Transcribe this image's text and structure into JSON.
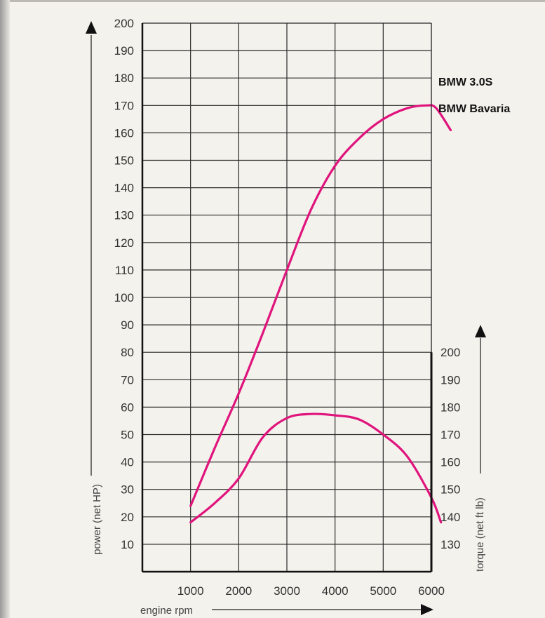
{
  "chart_data": {
    "type": "line",
    "xlabel": "engine rpm",
    "x_ticks": [
      1000,
      2000,
      3000,
      4000,
      5000,
      6000
    ],
    "xlim": [
      0,
      6000
    ],
    "left_axis": {
      "label": "power (net HP)",
      "ticks": [
        10,
        20,
        30,
        40,
        50,
        60,
        70,
        80,
        90,
        100,
        110,
        120,
        130,
        140,
        150,
        160,
        170,
        180,
        190,
        200
      ],
      "ylim": [
        0,
        200
      ]
    },
    "right_axis": {
      "label": "torque (net ft lb)",
      "ticks": [
        130,
        140,
        150,
        160,
        170,
        180,
        190,
        200
      ],
      "ylim": [
        120,
        200
      ]
    },
    "legend": [
      "BMW 3.0S",
      "BMW Bavaria"
    ],
    "grid": true,
    "line_color": "#e0147d",
    "series": [
      {
        "quantity": "power",
        "axis": "left",
        "x": [
          1000,
          1500,
          2000,
          2500,
          3000,
          3500,
          4000,
          4500,
          5000,
          5500,
          5900,
          6100,
          6400
        ],
        "y": [
          24,
          45,
          65,
          87,
          110,
          132,
          148,
          158,
          165,
          169,
          170,
          169,
          161
        ]
      },
      {
        "quantity": "torque",
        "axis": "right",
        "x": [
          1000,
          1500,
          2000,
          2500,
          3000,
          3500,
          4000,
          4500,
          5000,
          5500,
          6000,
          6200
        ],
        "y": [
          138,
          145,
          154,
          169,
          176,
          177.5,
          177,
          175.5,
          170,
          162,
          147,
          138
        ]
      }
    ]
  }
}
